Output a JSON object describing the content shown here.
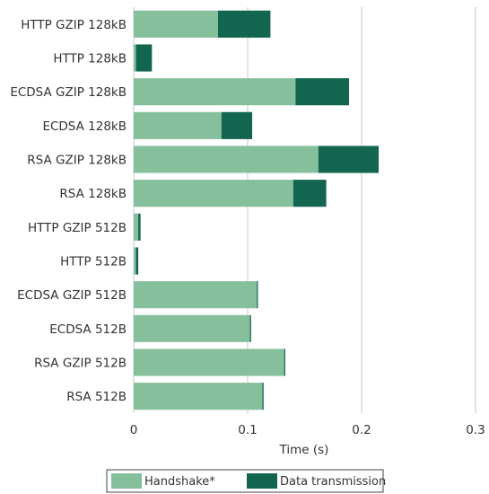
{
  "chart_data": {
    "type": "bar",
    "orientation": "horizontal",
    "stacked": true,
    "categories": [
      "HTTP GZIP 128kB",
      "HTTP 128kB",
      "ECDSA GZIP 128kB",
      "ECDSA 128kB",
      "RSA GZIP 128kB",
      "RSA 128kB",
      "HTTP GZIP 512B",
      "HTTP 512B",
      "ECDSA GZIP 512B",
      "ECDSA 512B",
      "RSA GZIP 512B",
      "RSA 512B"
    ],
    "series": [
      {
        "name": "Handshake*",
        "color": "#86bf9b",
        "values": [
          0.074,
          0.002,
          0.142,
          0.077,
          0.162,
          0.14,
          0.004,
          0.002,
          0.108,
          0.102,
          0.132,
          0.113
        ]
      },
      {
        "name": "Data transmission",
        "color": "#126650",
        "values": [
          0.046,
          0.014,
          0.047,
          0.027,
          0.053,
          0.029,
          0.002,
          0.002,
          0.001,
          0.001,
          0.001,
          0.001
        ]
      }
    ],
    "xlabel": "Time (s)",
    "ylabel": "",
    "xlim": [
      0,
      0.3
    ],
    "xticks": [
      "0",
      "0.1",
      "0.2",
      "0.3"
    ],
    "grid": "vertical",
    "legend": "bottom"
  }
}
